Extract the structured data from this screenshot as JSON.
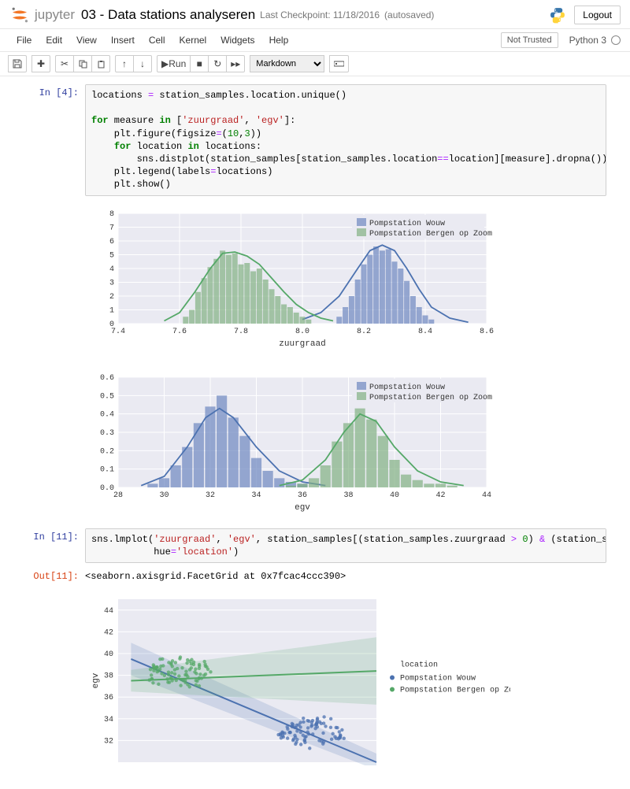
{
  "header": {
    "jupyter_label": "jupyter",
    "title": "03 - Data stations analyseren",
    "checkpoint": "Last Checkpoint: 11/18/2016",
    "autosave": "(autosaved)",
    "logout": "Logout"
  },
  "menubar": {
    "items": [
      "File",
      "Edit",
      "View",
      "Insert",
      "Cell",
      "Kernel",
      "Widgets",
      "Help"
    ],
    "not_trusted": "Not Trusted",
    "kernel": "Python 3"
  },
  "toolbar": {
    "run_label": "Run",
    "select_value": "Markdown"
  },
  "cells": {
    "in4_prompt": "In [4]:",
    "in11_prompt": "In [11]:",
    "out11_prompt": "Out[11]:",
    "out11_text": "<seaborn.axisgrid.FacetGrid at 0x7fcac4ccc390>"
  },
  "chart1": {
    "type": "histogram_kde",
    "xlabel": "zuurgraad",
    "xlim": [
      7.4,
      8.6
    ],
    "xticks": [
      7.4,
      7.6,
      7.8,
      8.0,
      8.2,
      8.4,
      8.6
    ],
    "ylim": [
      0,
      8
    ],
    "yticks": [
      0,
      1,
      2,
      3,
      4,
      5,
      6,
      7,
      8
    ],
    "bg": "#eaeaf2",
    "grid": "#ffffff",
    "series": [
      {
        "name": "Pompstation Wouw",
        "color_fill": "#6b86bfb0",
        "color_line": "#4c72b0",
        "bars": [
          [
            8.12,
            0.5
          ],
          [
            8.14,
            1.2
          ],
          [
            8.16,
            2.0
          ],
          [
            8.18,
            3.2
          ],
          [
            8.2,
            4.3
          ],
          [
            8.22,
            5.0
          ],
          [
            8.24,
            5.6
          ],
          [
            8.26,
            5.3
          ],
          [
            8.28,
            5.4
          ],
          [
            8.3,
            4.5
          ],
          [
            8.32,
            4.0
          ],
          [
            8.34,
            3.1
          ],
          [
            8.36,
            2.0
          ],
          [
            8.38,
            1.2
          ],
          [
            8.4,
            0.6
          ],
          [
            8.42,
            0.3
          ]
        ],
        "kde": [
          [
            8.0,
            0.3
          ],
          [
            8.06,
            0.8
          ],
          [
            8.12,
            2.0
          ],
          [
            8.18,
            4.0
          ],
          [
            8.22,
            5.3
          ],
          [
            8.26,
            5.7
          ],
          [
            8.3,
            5.3
          ],
          [
            8.34,
            4.0
          ],
          [
            8.38,
            2.5
          ],
          [
            8.42,
            1.2
          ],
          [
            8.48,
            0.4
          ],
          [
            8.54,
            0.1
          ]
        ]
      },
      {
        "name": "Pompstation Bergen op Zoom",
        "color_fill": "#7fb081b0",
        "color_line": "#55a868",
        "bars": [
          [
            7.62,
            0.5
          ],
          [
            7.64,
            1.0
          ],
          [
            7.66,
            2.3
          ],
          [
            7.68,
            3.3
          ],
          [
            7.7,
            4.1
          ],
          [
            7.72,
            4.7
          ],
          [
            7.74,
            5.3
          ],
          [
            7.76,
            5.0
          ],
          [
            7.78,
            5.1
          ],
          [
            7.8,
            4.3
          ],
          [
            7.82,
            4.4
          ],
          [
            7.84,
            3.8
          ],
          [
            7.86,
            4.0
          ],
          [
            7.88,
            3.2
          ],
          [
            7.9,
            2.5
          ],
          [
            7.92,
            2.0
          ],
          [
            7.94,
            1.4
          ],
          [
            7.96,
            1.2
          ],
          [
            7.98,
            0.8
          ],
          [
            8.0,
            0.5
          ],
          [
            8.02,
            0.3
          ]
        ],
        "kde": [
          [
            7.55,
            0.2
          ],
          [
            7.6,
            0.8
          ],
          [
            7.65,
            2.3
          ],
          [
            7.7,
            4.0
          ],
          [
            7.74,
            5.1
          ],
          [
            7.78,
            5.2
          ],
          [
            7.82,
            4.9
          ],
          [
            7.86,
            4.3
          ],
          [
            7.9,
            3.3
          ],
          [
            7.94,
            2.3
          ],
          [
            7.98,
            1.4
          ],
          [
            8.02,
            0.8
          ],
          [
            8.06,
            0.4
          ],
          [
            8.1,
            0.2
          ]
        ]
      }
    ],
    "bar_width": 0.018
  },
  "chart2": {
    "type": "histogram_kde",
    "xlabel": "egv",
    "xlim": [
      28,
      44
    ],
    "xticks": [
      28,
      30,
      32,
      34,
      36,
      38,
      40,
      42,
      44
    ],
    "ylim": [
      0,
      0.6
    ],
    "yticks": [
      0.0,
      0.1,
      0.2,
      0.3,
      0.4,
      0.5,
      0.6
    ],
    "bg": "#eaeaf2",
    "grid": "#ffffff",
    "series": [
      {
        "name": "Pompstation Wouw",
        "color_fill": "#6b86bfb0",
        "color_line": "#4c72b0",
        "bars": [
          [
            29.5,
            0.02
          ],
          [
            30.0,
            0.05
          ],
          [
            30.5,
            0.12
          ],
          [
            31.0,
            0.22
          ],
          [
            31.5,
            0.35
          ],
          [
            32.0,
            0.44
          ],
          [
            32.5,
            0.5
          ],
          [
            33.0,
            0.38
          ],
          [
            33.5,
            0.28
          ],
          [
            34.0,
            0.16
          ],
          [
            34.5,
            0.09
          ],
          [
            35.0,
            0.05
          ],
          [
            35.5,
            0.03
          ],
          [
            36.0,
            0.02
          ]
        ],
        "kde": [
          [
            29.0,
            0.01
          ],
          [
            30.0,
            0.06
          ],
          [
            31.0,
            0.22
          ],
          [
            31.8,
            0.38
          ],
          [
            32.4,
            0.43
          ],
          [
            33.0,
            0.38
          ],
          [
            34.0,
            0.22
          ],
          [
            35.0,
            0.09
          ],
          [
            36.0,
            0.03
          ],
          [
            37.0,
            0.01
          ]
        ]
      },
      {
        "name": "Pompstation Bergen op Zoom",
        "color_fill": "#7fb081b0",
        "color_line": "#55a868",
        "bars": [
          [
            35.5,
            0.01
          ],
          [
            36.0,
            0.02
          ],
          [
            36.5,
            0.05
          ],
          [
            37.0,
            0.12
          ],
          [
            37.5,
            0.25
          ],
          [
            38.0,
            0.35
          ],
          [
            38.5,
            0.43
          ],
          [
            39.0,
            0.37
          ],
          [
            39.5,
            0.28
          ],
          [
            40.0,
            0.15
          ],
          [
            40.5,
            0.07
          ],
          [
            41.0,
            0.04
          ],
          [
            41.5,
            0.02
          ],
          [
            42.0,
            0.02
          ],
          [
            42.5,
            0.01
          ]
        ],
        "kde": [
          [
            35.0,
            0.01
          ],
          [
            36.0,
            0.04
          ],
          [
            37.0,
            0.15
          ],
          [
            37.8,
            0.3
          ],
          [
            38.5,
            0.4
          ],
          [
            39.2,
            0.36
          ],
          [
            40.0,
            0.22
          ],
          [
            41.0,
            0.09
          ],
          [
            42.0,
            0.03
          ],
          [
            43.0,
            0.01
          ]
        ]
      }
    ],
    "bar_width": 0.45
  },
  "chart3": {
    "type": "scatter_lm",
    "ylabel": "egv",
    "xlim": [
      7.55,
      8.55
    ],
    "ylim": [
      30,
      45
    ],
    "yticks": [
      32,
      34,
      36,
      38,
      40,
      42,
      44
    ],
    "bg": "#eaeaf2",
    "grid": "#ffffff",
    "legend_title": "location",
    "series": [
      {
        "name": "Pompstation Wouw",
        "color": "#4c72b0",
        "line": [
          [
            7.6,
            39.5
          ],
          [
            8.55,
            30.0
          ]
        ],
        "ci": [
          [
            7.6,
            41.0
          ],
          [
            8.55,
            30.8
          ],
          [
            8.55,
            29.3
          ],
          [
            7.6,
            38.0
          ]
        ],
        "points_cluster": {
          "cx": 8.3,
          "cy": 32.8,
          "rx": 0.13,
          "ry": 1.3,
          "n": 90
        }
      },
      {
        "name": "Pompstation Bergen op Zoom",
        "color": "#55a868",
        "line": [
          [
            7.6,
            37.5
          ],
          [
            8.55,
            38.4
          ]
        ],
        "ci": [
          [
            7.6,
            38.5
          ],
          [
            8.55,
            41.5
          ],
          [
            8.55,
            35.3
          ],
          [
            7.6,
            36.5
          ]
        ],
        "points_cluster": {
          "cx": 7.78,
          "cy": 38.2,
          "rx": 0.13,
          "ry": 1.4,
          "n": 90
        }
      }
    ]
  }
}
